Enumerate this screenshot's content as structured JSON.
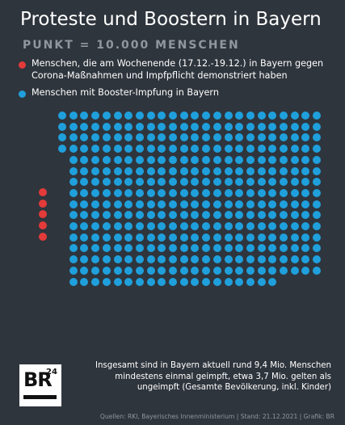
{
  "title": "Proteste und Boostern in Bayern",
  "subtitle": "PUNKT = 10.000 MENSCHEN",
  "legend": [
    {
      "color": "#e33a3a",
      "text": "Menschen, die am Wochenende (17.12.-19.12.) in Bayern gegen Corona-Maßnahmen und Impfpflicht demonstriert haben"
    },
    {
      "color": "#1fa0dc",
      "text": "Menschen mit Booster-Impfung in Bayern"
    }
  ],
  "dots": {
    "red_count": 5,
    "blue_count": 368,
    "red_color": "#e33a3a",
    "blue_color": "#1fa0dc"
  },
  "info_text": "Insgesamt sind in Bayern aktuell rund 9,4 Mio. Menschen mindestens einmal geimpft, etwa 3,7 Mio. gelten als ungeimpft (Gesamte Bevölkerung, inkl. Kinder)",
  "logo": {
    "main": "BR",
    "superscript": "24"
  },
  "source": "Quellen: RKI, Bayerisches Innenministerium | Stand: 21.12.2021 | Grafik: BR"
}
